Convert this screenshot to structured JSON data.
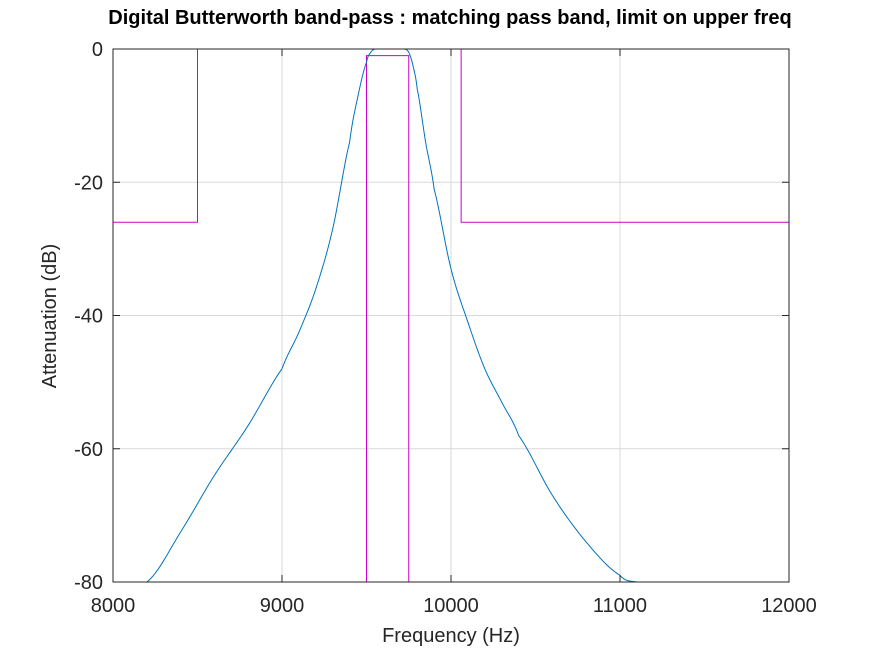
{
  "chart_data": {
    "type": "line",
    "title": "Digital Butterworth band-pass : matching pass band, limit on upper freq",
    "xlabel": "Frequency (Hz)",
    "ylabel": "Attenuation (dB)",
    "xlim": [
      8000,
      12000
    ],
    "ylim": [
      -80,
      0
    ],
    "xticks": [
      8000,
      9000,
      10000,
      11000,
      12000
    ],
    "yticks": [
      0,
      -20,
      -40,
      -60,
      -80
    ],
    "grid": true,
    "colors": {
      "response": "#0072bd",
      "mask": "#cc00cc",
      "grid": "#d9d9d9",
      "axes": "#262626"
    },
    "series": [
      {
        "role": "response",
        "x": [
          8200,
          8400,
          8600,
          8800,
          9000,
          9100,
          9200,
          9300,
          9400,
          9450,
          9500,
          9525,
          9550,
          9600,
          9650,
          9700,
          9725,
          9750,
          9775,
          9800,
          9850,
          9900,
          10000,
          10100,
          10200,
          10300,
          10400,
          10600,
          10800,
          11000,
          11100
        ],
        "y": [
          -80,
          -72.5,
          -64,
          -56.5,
          -48,
          -42.5,
          -36,
          -27,
          -14,
          -7,
          -2,
          -0.5,
          0,
          0,
          0,
          0,
          0,
          -0.5,
          -2.5,
          -6,
          -14,
          -21,
          -33,
          -41,
          -48,
          -53,
          -58,
          -67,
          -74,
          -79,
          -80
        ]
      },
      {
        "role": "mask-stopband",
        "x": [
          8000,
          8500,
          8500,
          10060,
          10060,
          12000
        ],
        "y": [
          -26,
          -26,
          0,
          0,
          -26,
          -26
        ]
      },
      {
        "role": "mask-passband",
        "x": [
          9500,
          9500,
          9750,
          9750
        ],
        "y": [
          -80,
          -1,
          -1,
          -80
        ]
      }
    ]
  }
}
